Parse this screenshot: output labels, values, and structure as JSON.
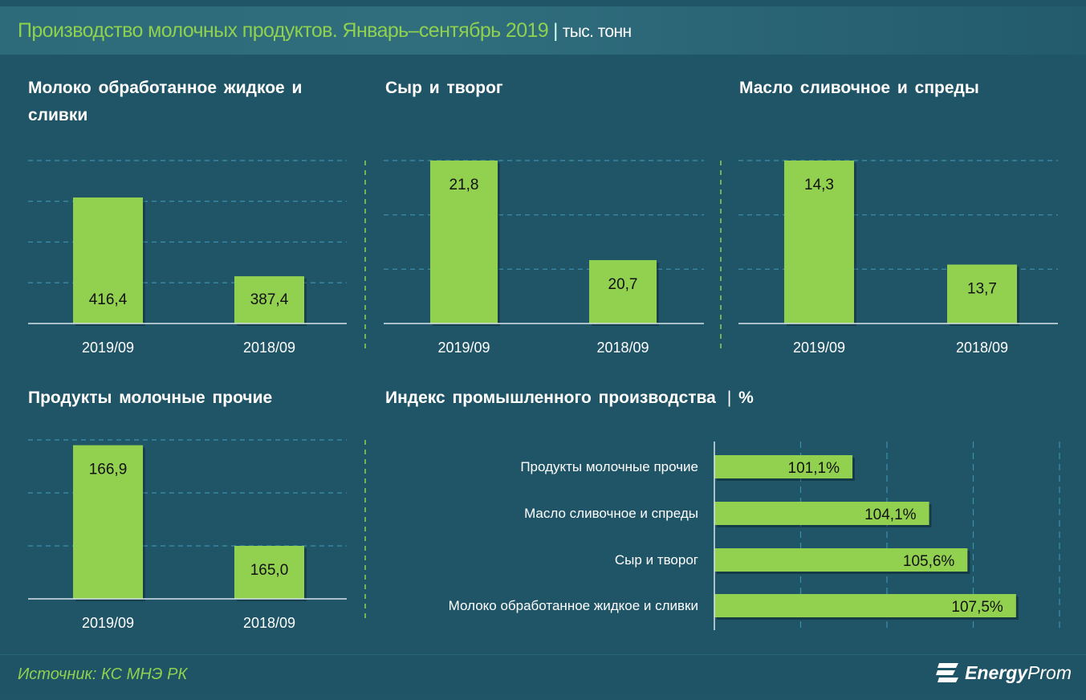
{
  "header": {
    "title": "Производство молочных продуктов. Январь–сентябрь 2019",
    "unit": "тыс. тонн"
  },
  "footer": {
    "source": "Источник: КС МНЭ РК",
    "logo": "EnergyProm"
  },
  "colors": {
    "bar": "#92d050",
    "background": "#205567",
    "title": "#8fd14f",
    "grid": "#3b90b0"
  },
  "chart_data": [
    {
      "type": "bar",
      "title": "Молоко обработанное жидкое и сливки",
      "categories": [
        "2019/09",
        "2018/09"
      ],
      "values": [
        416.4,
        387.4
      ],
      "labels": [
        "416,4",
        "387,4"
      ],
      "ylim": [
        370,
        430
      ],
      "grid": true,
      "label_pos": "bottom"
    },
    {
      "type": "bar",
      "title": "Сыр и творог",
      "categories": [
        "2019/09",
        "2018/09"
      ],
      "values": [
        21.8,
        20.7
      ],
      "labels": [
        "21,8",
        "20,7"
      ],
      "ylim": [
        20,
        21.8
      ],
      "grid": true,
      "label_pos": "top"
    },
    {
      "type": "bar",
      "title": "Масло сливочное и спреды",
      "categories": [
        "2019/09",
        "2018/09"
      ],
      "values": [
        14.3,
        13.7
      ],
      "labels": [
        "14,3",
        "13,7"
      ],
      "ylim": [
        13.36,
        14.3
      ],
      "grid": true,
      "label_pos": "top"
    },
    {
      "type": "bar",
      "title": "Продукты молочные прочие",
      "categories": [
        "2019/09",
        "2018/09"
      ],
      "values": [
        166.9,
        165.0
      ],
      "labels": [
        "166,9",
        "165,0"
      ],
      "ylim": [
        164,
        167
      ],
      "grid": true,
      "label_pos": "top"
    },
    {
      "type": "bar",
      "orientation": "horizontal",
      "title": "Индекс промышленного производства",
      "unit": "%",
      "categories": [
        "Продукты молочные прочие",
        "Масло сливочное и спреды",
        "Сыр и творог",
        "Молоко обработанное жидкое и сливки"
      ],
      "values": [
        101.1,
        104.1,
        105.6,
        107.5
      ],
      "labels": [
        "101,1%",
        "104,1%",
        "105,6%",
        "107,5%"
      ],
      "xlim": [
        95.7,
        109.2
      ],
      "grid": true
    }
  ]
}
